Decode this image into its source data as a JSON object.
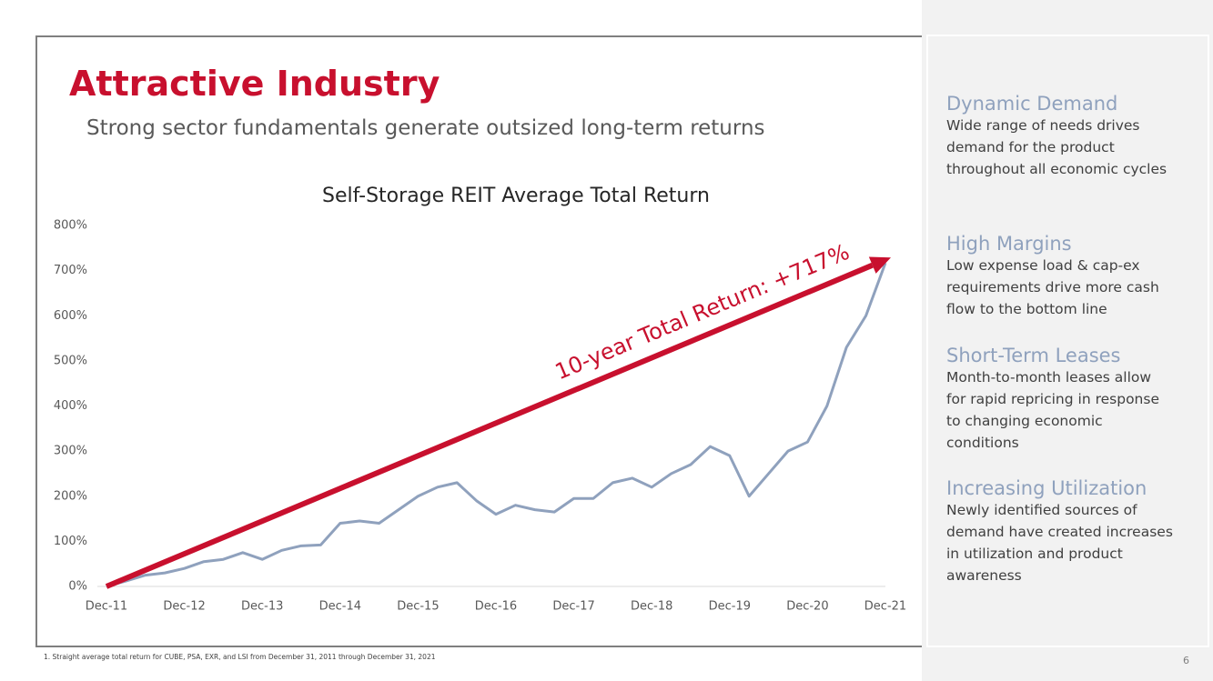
{
  "title": "Attractive Industry",
  "subtitle": "Strong sector fundamentals generate outsized long-term returns",
  "chart_data": {
    "type": "line",
    "title": "Self-Storage REIT Average Total Return",
    "annotation": "10-year Total Return: +717%",
    "categories": [
      "Dec-11",
      null,
      null,
      null,
      "Dec-12",
      null,
      null,
      null,
      "Dec-13",
      null,
      null,
      null,
      "Dec-14",
      null,
      null,
      null,
      "Dec-15",
      null,
      null,
      null,
      "Dec-16",
      null,
      null,
      null,
      "Dec-17",
      null,
      null,
      null,
      "Dec-18",
      null,
      null,
      null,
      "Dec-19",
      null,
      null,
      null,
      "Dec-20",
      null,
      null,
      null,
      "Dec-21"
    ],
    "series": [
      {
        "name": "Self-Storage REIT Average Total Return",
        "color": "#8fa1bd",
        "values": [
          0,
          12,
          25,
          30,
          40,
          55,
          60,
          75,
          60,
          80,
          90,
          92,
          140,
          145,
          140,
          170,
          200,
          220,
          230,
          190,
          160,
          180,
          170,
          165,
          195,
          195,
          230,
          240,
          220,
          250,
          270,
          310,
          290,
          200,
          250,
          300,
          320,
          400,
          530,
          600,
          717
        ]
      }
    ],
    "ylim": [
      0,
      800
    ],
    "yticks": [
      {
        "value": 0,
        "label": "0%"
      },
      {
        "value": 100,
        "label": "100%"
      },
      {
        "value": 200,
        "label": "200%"
      },
      {
        "value": 300,
        "label": "300%"
      },
      {
        "value": 400,
        "label": "400%"
      },
      {
        "value": 500,
        "label": "500%"
      },
      {
        "value": 600,
        "label": "600%"
      },
      {
        "value": 700,
        "label": "700%"
      },
      {
        "value": 800,
        "label": "800%"
      }
    ],
    "grid": false
  },
  "sidebar": [
    {
      "heading": "Dynamic Demand",
      "text": "Wide range of needs drives demand for the product throughout all economic cycles"
    },
    {
      "heading": "High Margins",
      "text": "Low expense load & cap-ex requirements drive more cash flow to the bottom line"
    },
    {
      "heading": "Short-Term Leases",
      "text": "Month-to-month leases allow for rapid repricing in response to changing economic conditions"
    },
    {
      "heading": "Increasing Utilization",
      "text": "Newly identified sources of demand have created increases in utilization and product awareness"
    }
  ],
  "footnote": "1.   Straight average total return for CUBE, PSA, EXR, and LSI from December 31, 2011 through December 31, 2021",
  "page_number": "6"
}
